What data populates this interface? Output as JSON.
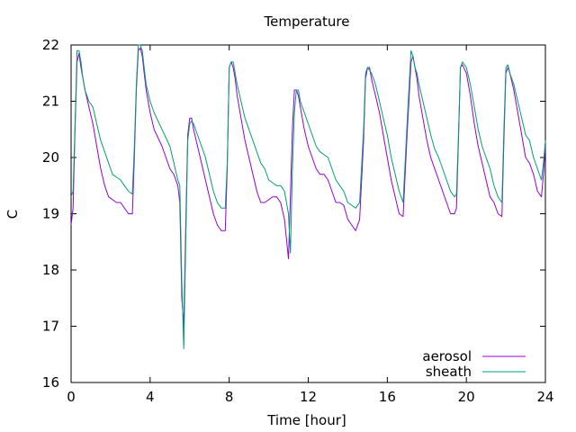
{
  "chart_data": {
    "type": "line",
    "title": "Temperature",
    "xlabel": "Time [hour]",
    "ylabel": "C",
    "xlim": [
      0,
      24
    ],
    "ylim": [
      16,
      22
    ],
    "xticks": [
      0,
      4,
      8,
      12,
      16,
      20,
      24
    ],
    "yticks": [
      16,
      17,
      18,
      19,
      20,
      21,
      22
    ],
    "grid": false,
    "legend_position": "bottom-right",
    "series": [
      {
        "name": "aerosol",
        "color": "#9400d3",
        "x": [
          0.0,
          0.1,
          0.2,
          0.3,
          0.4,
          0.5,
          0.6,
          0.7,
          0.9,
          1.1,
          1.3,
          1.5,
          1.7,
          1.9,
          2.1,
          2.3,
          2.5,
          2.7,
          2.9,
          3.1,
          3.2,
          3.3,
          3.4,
          3.5,
          3.6,
          3.7,
          3.8,
          4.0,
          4.2,
          4.4,
          4.6,
          4.8,
          5.0,
          5.2,
          5.4,
          5.5,
          5.6,
          5.7,
          5.8,
          5.9,
          6.0,
          6.1,
          6.2,
          6.4,
          6.6,
          6.8,
          7.0,
          7.2,
          7.4,
          7.6,
          7.8,
          7.9,
          8.0,
          8.1,
          8.2,
          8.3,
          8.4,
          8.6,
          8.8,
          9.0,
          9.2,
          9.4,
          9.6,
          9.8,
          10.0,
          10.2,
          10.4,
          10.6,
          10.8,
          11.0,
          11.1,
          11.2,
          11.3,
          11.4,
          11.5,
          11.6,
          11.7,
          11.8,
          12.0,
          12.2,
          12.4,
          12.6,
          12.8,
          13.0,
          13.2,
          13.4,
          13.6,
          13.8,
          14.0,
          14.2,
          14.4,
          14.6,
          14.8,
          14.9,
          15.0,
          15.1,
          15.2,
          15.4,
          15.6,
          15.8,
          16.0,
          16.2,
          16.4,
          16.6,
          16.8,
          17.0,
          17.2,
          17.3,
          17.4,
          17.5,
          17.6,
          17.8,
          18.0,
          18.2,
          18.4,
          18.6,
          18.8,
          19.0,
          19.2,
          19.4,
          19.5,
          19.6,
          19.7,
          19.8,
          20.0,
          20.2,
          20.4,
          20.6,
          20.8,
          21.0,
          21.2,
          21.4,
          21.6,
          21.8,
          21.9,
          22.0,
          22.1,
          22.2,
          22.4,
          22.6,
          22.8,
          23.0,
          23.2,
          23.4,
          23.6,
          23.8,
          23.9,
          24.0
        ],
        "y": [
          18.8,
          19.1,
          20.5,
          21.7,
          21.85,
          21.6,
          21.4,
          21.2,
          20.9,
          20.6,
          20.2,
          19.8,
          19.5,
          19.3,
          19.25,
          19.2,
          19.2,
          19.1,
          19.0,
          19.0,
          20.0,
          21.2,
          21.9,
          21.95,
          21.8,
          21.5,
          21.2,
          20.8,
          20.5,
          20.35,
          20.2,
          20.0,
          19.8,
          19.7,
          19.5,
          19.2,
          17.5,
          17.0,
          18.8,
          20.4,
          20.7,
          20.7,
          20.5,
          20.2,
          19.9,
          19.6,
          19.3,
          19.0,
          18.8,
          18.7,
          18.7,
          19.8,
          21.6,
          21.7,
          21.6,
          21.4,
          21.1,
          20.7,
          20.3,
          20.0,
          19.7,
          19.4,
          19.2,
          19.2,
          19.25,
          19.3,
          19.3,
          19.2,
          18.9,
          18.2,
          19.3,
          20.5,
          21.2,
          21.2,
          21.1,
          20.9,
          20.7,
          20.5,
          20.2,
          20.0,
          19.8,
          19.7,
          19.7,
          19.6,
          19.4,
          19.2,
          19.2,
          19.15,
          18.9,
          18.8,
          18.7,
          18.9,
          20.3,
          21.4,
          21.6,
          21.6,
          21.4,
          21.1,
          20.8,
          20.4,
          20.0,
          19.6,
          19.3,
          19.0,
          18.95,
          20.4,
          21.7,
          21.8,
          21.6,
          21.4,
          21.1,
          20.7,
          20.3,
          20.0,
          19.8,
          19.6,
          19.4,
          19.2,
          19.0,
          19.0,
          19.1,
          20.3,
          21.6,
          21.65,
          21.5,
          21.1,
          20.6,
          20.2,
          19.9,
          19.6,
          19.3,
          19.2,
          19.0,
          18.95,
          20.3,
          21.5,
          21.6,
          21.5,
          21.2,
          20.8,
          20.4,
          20.0,
          19.9,
          19.7,
          19.4,
          19.3,
          19.7,
          20.2
        ]
      },
      {
        "name": "sheath",
        "color": "#009e73",
        "x": [
          0.0,
          0.1,
          0.2,
          0.3,
          0.4,
          0.5,
          0.6,
          0.7,
          0.9,
          1.1,
          1.3,
          1.5,
          1.7,
          1.9,
          2.1,
          2.3,
          2.5,
          2.7,
          2.9,
          3.1,
          3.2,
          3.3,
          3.4,
          3.5,
          3.6,
          3.7,
          3.8,
          4.0,
          4.2,
          4.4,
          4.6,
          4.8,
          5.0,
          5.2,
          5.4,
          5.5,
          5.6,
          5.7,
          5.8,
          5.9,
          6.0,
          6.1,
          6.2,
          6.4,
          6.6,
          6.8,
          7.0,
          7.2,
          7.4,
          7.6,
          7.8,
          7.9,
          8.0,
          8.1,
          8.2,
          8.3,
          8.4,
          8.6,
          8.8,
          9.0,
          9.2,
          9.4,
          9.6,
          9.8,
          10.0,
          10.2,
          10.4,
          10.6,
          10.8,
          11.0,
          11.1,
          11.2,
          11.3,
          11.4,
          11.5,
          11.6,
          11.7,
          11.8,
          12.0,
          12.2,
          12.4,
          12.6,
          12.8,
          13.0,
          13.2,
          13.4,
          13.6,
          13.8,
          14.0,
          14.2,
          14.4,
          14.6,
          14.8,
          14.9,
          15.0,
          15.1,
          15.2,
          15.4,
          15.6,
          15.8,
          16.0,
          16.2,
          16.4,
          16.6,
          16.8,
          17.0,
          17.2,
          17.3,
          17.4,
          17.5,
          17.6,
          17.8,
          18.0,
          18.2,
          18.4,
          18.6,
          18.8,
          19.0,
          19.2,
          19.4,
          19.5,
          19.6,
          19.7,
          19.8,
          20.0,
          20.2,
          20.4,
          20.6,
          20.8,
          21.0,
          21.2,
          21.4,
          21.6,
          21.8,
          21.9,
          22.0,
          22.1,
          22.2,
          22.4,
          22.6,
          22.8,
          23.0,
          23.2,
          23.4,
          23.6,
          23.8,
          23.9,
          24.0
        ],
        "y": [
          19.3,
          19.4,
          20.6,
          21.9,
          21.9,
          21.7,
          21.4,
          21.2,
          21.0,
          20.9,
          20.6,
          20.3,
          20.1,
          19.9,
          19.7,
          19.65,
          19.6,
          19.5,
          19.4,
          19.35,
          20.2,
          21.3,
          22.0,
          22.0,
          21.9,
          21.6,
          21.3,
          21.0,
          20.8,
          20.65,
          20.5,
          20.35,
          20.2,
          19.9,
          19.6,
          19.5,
          17.8,
          16.6,
          18.5,
          20.3,
          20.6,
          20.65,
          20.6,
          20.4,
          20.2,
          20.0,
          19.7,
          19.4,
          19.2,
          19.1,
          19.1,
          19.9,
          21.6,
          21.7,
          21.7,
          21.5,
          21.3,
          21.0,
          20.7,
          20.5,
          20.3,
          20.1,
          19.9,
          19.8,
          19.6,
          19.55,
          19.5,
          19.5,
          19.4,
          19.0,
          18.3,
          19.8,
          20.8,
          21.2,
          21.2,
          21.0,
          20.9,
          20.8,
          20.6,
          20.4,
          20.2,
          20.1,
          20.05,
          20.0,
          19.8,
          19.6,
          19.5,
          19.4,
          19.2,
          19.15,
          19.1,
          19.2,
          20.5,
          21.5,
          21.6,
          21.55,
          21.5,
          21.3,
          21.0,
          20.7,
          20.4,
          20.0,
          19.7,
          19.4,
          19.2,
          20.6,
          21.9,
          21.8,
          21.6,
          21.5,
          21.3,
          21.0,
          20.7,
          20.4,
          20.15,
          20.0,
          19.8,
          19.6,
          19.4,
          19.3,
          19.35,
          20.4,
          21.6,
          21.7,
          21.6,
          21.3,
          20.9,
          20.5,
          20.2,
          20.0,
          19.8,
          19.5,
          19.3,
          19.2,
          20.5,
          21.6,
          21.65,
          21.5,
          21.3,
          21.0,
          20.7,
          20.4,
          20.3,
          20.0,
          19.8,
          19.6,
          19.9,
          20.3
        ]
      }
    ]
  }
}
